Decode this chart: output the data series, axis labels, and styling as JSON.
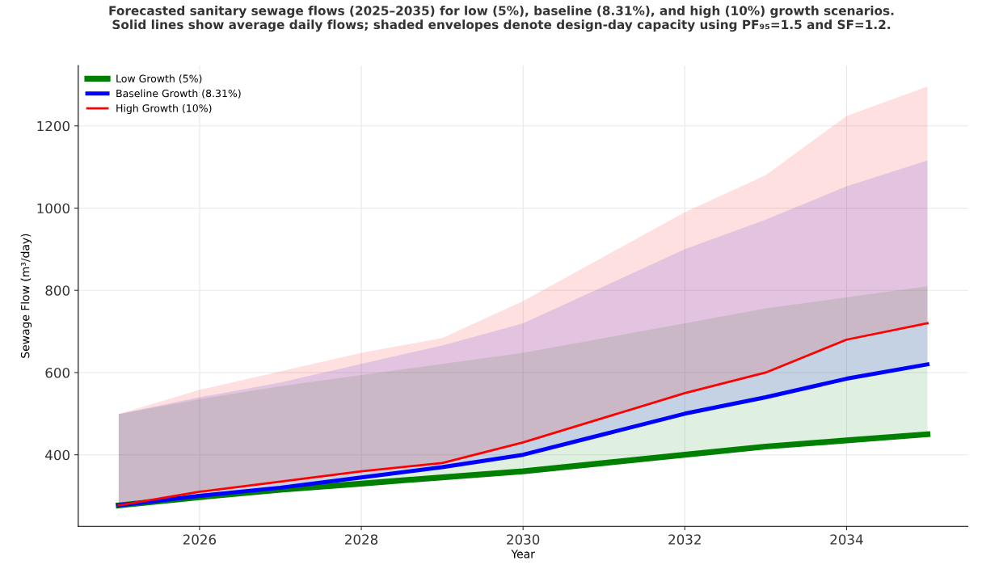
{
  "chart_data": {
    "type": "line",
    "title": "Forecasted sanitary sewage flows (2025–2035) for low (5%), baseline (8.31%), and high (10%) growth scenarios.\nSolid lines show average daily flows; shaded envelopes denote design-day capacity using PF₉₅=1.5 and SF=1.2.",
    "xlabel": "Year",
    "ylabel": "Sewage Flow (m³/day)",
    "x": [
      2025,
      2026,
      2027,
      2028,
      2029,
      2030,
      2031,
      2032,
      2033,
      2034,
      2035
    ],
    "series": [
      {
        "name": "Low Growth (5%)",
        "color": "#008000",
        "values": [
          277,
          297,
          315,
          330,
          345,
          360,
          380,
          400,
          420,
          435,
          450
        ],
        "lower": [
          277,
          297,
          315,
          330,
          345,
          360,
          380,
          400,
          420,
          435,
          450
        ],
        "upper": [
          499,
          535,
          567,
          594,
          621,
          648,
          684,
          720,
          756,
          783,
          810
        ]
      },
      {
        "name": "Baseline Growth (8.31%)",
        "color": "#0000ff",
        "values": [
          277,
          300,
          320,
          345,
          370,
          400,
          450,
          500,
          540,
          585,
          620
        ],
        "lower": [
          277,
          300,
          320,
          345,
          370,
          400,
          450,
          500,
          540,
          585,
          620
        ],
        "upper": [
          499,
          540,
          576,
          621,
          666,
          720,
          810,
          900,
          972,
          1053,
          1116
        ]
      },
      {
        "name": "High Growth (10%)",
        "color": "#ff0000",
        "values": [
          277,
          310,
          335,
          360,
          380,
          430,
          490,
          550,
          600,
          680,
          720
        ],
        "lower": [
          277,
          310,
          335,
          360,
          380,
          430,
          490,
          550,
          600,
          680,
          720
        ],
        "upper": [
          499,
          558,
          603,
          648,
          684,
          774,
          882,
          990,
          1080,
          1224,
          1296
        ]
      }
    ],
    "xlim": [
      2024.5,
      2035.5
    ],
    "ylim": [
      226,
      1347
    ],
    "xticks": [
      2026,
      2028,
      2030,
      2032,
      2034
    ],
    "yticks": [
      400,
      600,
      800,
      1000,
      1200
    ],
    "grid": true,
    "legend": "top left",
    "marker": "none",
    "line_style": "solid"
  }
}
